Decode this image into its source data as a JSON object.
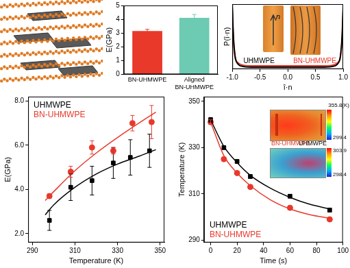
{
  "chart_data": [
    {
      "type": "bar",
      "ylabel": "E(GPa)",
      "categories": [
        "BN-UHMWPE",
        "Aligned BN-UHMWPE"
      ],
      "values": [
        3.15,
        4.1
      ],
      "errors": [
        0.12,
        0.25
      ],
      "colors": [
        "#e8392b",
        "#6ccbb2"
      ],
      "ylim": [
        0,
        5
      ],
      "yticks": [
        0,
        1,
        2,
        3,
        4,
        5
      ],
      "grid": false
    },
    {
      "type": "line",
      "xlabel": "î·n",
      "ylabel": "P(î·n)",
      "x": [
        -1,
        -0.98,
        -0.95,
        -0.9,
        -0.8,
        -0.6,
        -0.4,
        -0.2,
        0,
        0.2,
        0.4,
        0.6,
        0.8,
        0.9,
        0.95,
        0.98,
        1
      ],
      "series": [
        {
          "name": "UHMWPE",
          "color": "#000000",
          "values": [
            0.95,
            0.5,
            0.2,
            0.08,
            0.04,
            0.03,
            0.03,
            0.03,
            0.03,
            0.03,
            0.03,
            0.03,
            0.04,
            0.08,
            0.2,
            0.5,
            0.95
          ]
        },
        {
          "name": "BN-UHMWPE",
          "color": "#e8392b",
          "values": [
            0.9,
            0.45,
            0.18,
            0.1,
            0.06,
            0.05,
            0.05,
            0.05,
            0.05,
            0.05,
            0.05,
            0.05,
            0.06,
            0.1,
            0.18,
            0.45,
            0.9
          ]
        }
      ],
      "xlim": [
        -1,
        1
      ],
      "xticks": [
        {
          "value": -1,
          "label": "-1.0"
        },
        -0.5,
        {
          "value": 0,
          "label": "0.0"
        },
        0.5,
        {
          "value": 1,
          "label": "1.0"
        }
      ],
      "ylim": [
        0,
        1
      ],
      "tick_labels": "x",
      "grid": false,
      "legend": "bottom",
      "annotations": [
        "n"
      ]
    },
    {
      "type": "scatter",
      "xlabel": "Temperature (K)",
      "ylabel": "E(GPa)",
      "series": [
        {
          "name": "UHMWPE",
          "color": "#000000",
          "marker": "square",
          "x": [
            298,
            308,
            318,
            328,
            336,
            345
          ],
          "values": [
            2.6,
            4.1,
            4.4,
            5.2,
            5.45,
            5.75
          ],
          "errors": [
            0.45,
            0.6,
            0.65,
            0.7,
            0.8,
            0.75
          ],
          "fit_x": [
            296,
            300,
            310,
            320,
            330,
            340,
            348
          ],
          "fit_values": [
            2.85,
            3.3,
            4.1,
            4.7,
            5.15,
            5.5,
            5.8
          ]
        },
        {
          "name": "BN-UHMWPE",
          "color": "#e8392b",
          "marker": "circle",
          "x": [
            298,
            308,
            318,
            328,
            337,
            346
          ],
          "values": [
            3.7,
            4.8,
            5.9,
            5.75,
            7.0,
            7.05
          ],
          "errors": [
            0.1,
            0.25,
            0.3,
            0.15,
            0.35,
            0.75
          ],
          "fit_x": [
            296,
            300,
            310,
            320,
            330,
            340,
            348
          ],
          "fit_values": [
            3.5,
            3.9,
            4.85,
            5.65,
            6.35,
            7.0,
            7.5
          ]
        }
      ],
      "xlim": [
        288,
        352
      ],
      "xticks": [
        290,
        310,
        330,
        350
      ],
      "ylim": [
        1.6,
        8.2
      ],
      "yticks": [
        {
          "value": 2,
          "label": "2.0"
        },
        {
          "value": 4,
          "label": "4.0"
        },
        {
          "value": 6,
          "label": "6.0"
        },
        {
          "value": 8,
          "label": "8.0"
        }
      ],
      "grid": false,
      "legend": "upper left"
    },
    {
      "type": "scatter",
      "xlabel": "Time (s)",
      "ylabel": "Temperature (K)",
      "series": [
        {
          "name": "UHMWPE",
          "color": "#000000",
          "marker": "square",
          "x": [
            0,
            10,
            20,
            30,
            60,
            90
          ],
          "values": [
            342,
            330,
            324,
            317.5,
            309,
            303
          ],
          "errors": [
            1,
            0.8,
            0.8,
            0.8,
            0.8,
            0.8
          ],
          "fit_x": [
            0,
            10,
            20,
            30,
            45,
            60,
            75,
            90
          ],
          "fit_values": [
            342,
            330.5,
            323.5,
            318,
            312.5,
            308.5,
            305.5,
            303.5
          ]
        },
        {
          "name": "BN-UHMWPE",
          "color": "#e8392b",
          "marker": "circle",
          "x": [
            0,
            10,
            20,
            30,
            60,
            90
          ],
          "values": [
            341,
            325,
            319,
            313,
            304,
            299
          ],
          "errors": [
            1,
            0.8,
            0.8,
            0.8,
            0.8,
            0.8
          ],
          "fit_x": [
            0,
            10,
            20,
            30,
            45,
            60,
            75,
            90
          ],
          "fit_values": [
            341,
            326.5,
            319,
            313.5,
            307.5,
            303.5,
            301,
            299.5
          ]
        }
      ],
      "xlim": [
        -5,
        100
      ],
      "xticks": [
        0,
        20,
        40,
        60,
        80,
        100
      ],
      "ylim": [
        289,
        352
      ],
      "yticks": [
        290,
        310,
        330,
        350
      ],
      "grid": false,
      "legend": "lower left",
      "annotations": [
        "BN-UHMWPE",
        "UHMWPE"
      ],
      "colorbars": [
        {
          "range": [
            299.4,
            355.8
          ],
          "ticks": [
            {
              "value": 355.8,
              "label": "355.8(K)"
            },
            299.4
          ]
        },
        {
          "range": [
            298.4,
            303.9
          ],
          "ticks": [
            303.9,
            298.4
          ]
        }
      ]
    }
  ]
}
